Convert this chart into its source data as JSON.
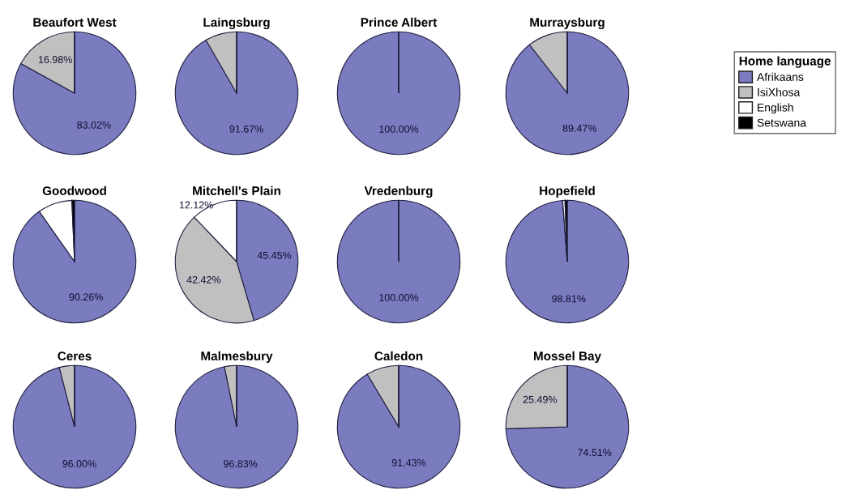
{
  "chart_data": [
    {
      "type": "pie",
      "title": "Beaufort West",
      "categories": [
        "Afrikaans",
        "IsiXhosa",
        "English",
        "Setswana"
      ],
      "values": [
        83.02,
        16.98,
        0,
        0
      ],
      "colors": [
        "#7b7bc0",
        "#c0c0c0",
        "#ffffff",
        "#000000"
      ],
      "value_labels": [
        "83.02%",
        "16.98%",
        null,
        null
      ],
      "legend": "right",
      "legend_title": "Home language"
    },
    {
      "type": "pie",
      "title": "Laingsburg",
      "categories": [
        null,
        null,
        null,
        null
      ],
      "values": [
        91.67,
        8.33,
        0,
        0
      ],
      "colors": [
        "#7b7bc0",
        "#c0c0c0",
        "#ffffff",
        "#000000"
      ],
      "value_labels": [
        "91.67%",
        null,
        null,
        null
      ]
    },
    {
      "type": "pie",
      "title": "Prince Albert",
      "categories": [
        null,
        null,
        null,
        null
      ],
      "values": [
        100.0,
        0,
        0,
        0
      ],
      "colors": [
        "#7b7bc0",
        "#c0c0c0",
        "#ffffff",
        "#000000"
      ],
      "value_labels": [
        "100.00%",
        null,
        null,
        null
      ]
    },
    {
      "type": "pie",
      "title": "Murraysburg",
      "categories": [
        null,
        null,
        null,
        null
      ],
      "values": [
        89.47,
        10.53,
        0,
        0
      ],
      "colors": [
        "#7b7bc0",
        "#c0c0c0",
        "#ffffff",
        "#000000"
      ],
      "value_labels": [
        "89.47%",
        null,
        null,
        null
      ]
    },
    {
      "type": "pie",
      "title": "Goodwood",
      "categories": [
        null,
        null,
        null,
        null
      ],
      "values": [
        90.26,
        0,
        9.04,
        0.7
      ],
      "colors": [
        "#7b7bc0",
        "#c0c0c0",
        "#ffffff",
        "#000000"
      ],
      "value_labels": [
        "90.26%",
        null,
        null,
        null
      ]
    },
    {
      "type": "pie",
      "title": "Mitchell's Plain",
      "categories": [
        null,
        null,
        null,
        null
      ],
      "values": [
        45.45,
        42.42,
        12.12,
        0
      ],
      "colors": [
        "#7b7bc0",
        "#c0c0c0",
        "#ffffff",
        "#000000"
      ],
      "value_labels": [
        "45.45%",
        "42.42%",
        "12.12%",
        null
      ]
    },
    {
      "type": "pie",
      "title": "Vredenburg",
      "categories": [
        null,
        null,
        null,
        null
      ],
      "values": [
        100.0,
        0,
        0,
        0
      ],
      "colors": [
        "#7b7bc0",
        "#c0c0c0",
        "#ffffff",
        "#000000"
      ],
      "value_labels": [
        "100.00%",
        null,
        null,
        null
      ]
    },
    {
      "type": "pie",
      "title": "Hopefield",
      "categories": [
        null,
        null,
        null,
        null
      ],
      "values": [
        98.81,
        0,
        0.6,
        0.59
      ],
      "colors": [
        "#7b7bc0",
        "#c0c0c0",
        "#ffffff",
        "#000000"
      ],
      "value_labels": [
        "98.81%",
        null,
        null,
        null
      ]
    },
    {
      "type": "pie",
      "title": "Ceres",
      "categories": [
        null,
        null,
        null,
        null
      ],
      "values": [
        96.0,
        4.0,
        0,
        0
      ],
      "colors": [
        "#7b7bc0",
        "#c0c0c0",
        "#ffffff",
        "#000000"
      ],
      "value_labels": [
        "96.00%",
        null,
        null,
        null
      ]
    },
    {
      "type": "pie",
      "title": "Malmesbury",
      "categories": [
        null,
        null,
        null,
        null
      ],
      "values": [
        96.83,
        3.17,
        0,
        0
      ],
      "colors": [
        "#7b7bc0",
        "#c0c0c0",
        "#ffffff",
        "#000000"
      ],
      "value_labels": [
        "96.83%",
        null,
        null,
        null
      ]
    },
    {
      "type": "pie",
      "title": "Caledon",
      "categories": [
        null,
        null,
        null,
        null
      ],
      "values": [
        91.43,
        8.57,
        0,
        0
      ],
      "colors": [
        "#7b7bc0",
        "#c0c0c0",
        "#ffffff",
        "#000000"
      ],
      "value_labels": [
        "91.43%",
        null,
        null,
        null
      ]
    },
    {
      "type": "pie",
      "title": "Mossel Bay",
      "categories": [
        null,
        null,
        null,
        null
      ],
      "values": [
        74.51,
        25.49,
        0,
        0
      ],
      "colors": [
        "#7b7bc0",
        "#c0c0c0",
        "#ffffff",
        "#000000"
      ],
      "value_labels": [
        "74.51%",
        "25.49%",
        null,
        null
      ]
    }
  ]
}
